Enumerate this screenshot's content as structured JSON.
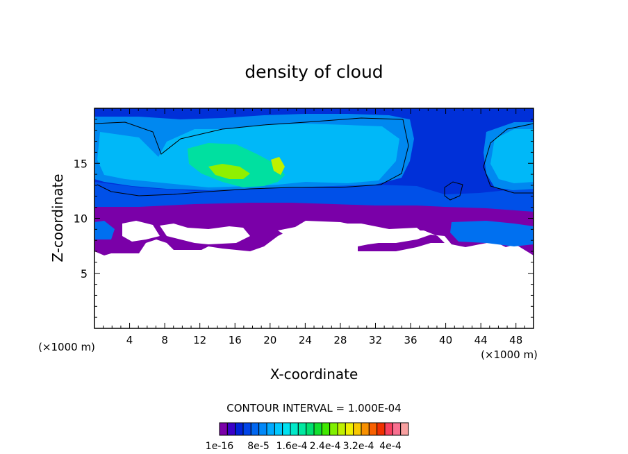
{
  "chart_data": {
    "type": "heatmap",
    "title": "density of cloud",
    "xlabel": "X-coordinate",
    "ylabel": "Z-coordinate",
    "x_unit_left": "(×1000 m)",
    "x_unit_right": "(×1000 m)",
    "xlim": [
      0,
      50
    ],
    "ylim": [
      0,
      20
    ],
    "x_ticks": [
      4,
      8,
      12,
      16,
      20,
      24,
      28,
      32,
      36,
      40,
      44,
      48
    ],
    "y_ticks": [
      5,
      10,
      15
    ],
    "contour_interval_text": "CONTOUR INTERVAL = 1.000E-04",
    "colorbar_labels": [
      "1e-16",
      "8e-5",
      "1.6e-4",
      "2.4e-4",
      "3.2e-4",
      "4e-4"
    ],
    "colorbar_colors": [
      "#7a00a8",
      "#3a00c8",
      "#0022d8",
      "#0044e8",
      "#0066f0",
      "#0088f8",
      "#00aaff",
      "#00c8ff",
      "#00e0f0",
      "#00e8c8",
      "#00e8a0",
      "#00e070",
      "#10e030",
      "#40e800",
      "#80f000",
      "#c0f000",
      "#f0f000",
      "#f8c800",
      "#f89000",
      "#f86000",
      "#f03000",
      "#f84060",
      "#f87090",
      "#f8a0a0"
    ],
    "colors": {
      "layer_purple": "#7a00a8",
      "layer_deepblue": "#0030d8",
      "layer_blue": "#0050e8",
      "layer_mid": "#0088f0",
      "layer_cyan": "#00b8f8",
      "layer_green": "#00e0a0",
      "layer_yellowgreen": "#90f000"
    }
  }
}
